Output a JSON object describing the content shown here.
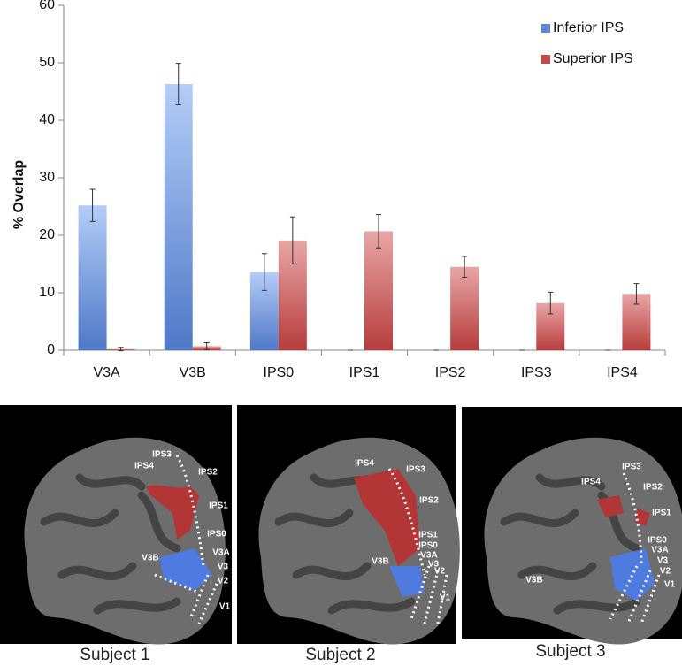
{
  "chart_data": {
    "type": "bar",
    "y_label": "% Overlap",
    "categories": [
      "V3A",
      "V3B",
      "IPS0",
      "IPS1",
      "IPS2",
      "IPS3",
      "IPS4"
    ],
    "series": [
      {
        "name": "Inferior IPS",
        "color": "#5b86d6",
        "values": [
          25.2,
          46.3,
          13.6,
          0,
          0,
          0,
          0
        ],
        "errors": [
          2.8,
          3.6,
          3.2,
          0,
          0,
          0,
          0
        ]
      },
      {
        "name": "Superior IPS",
        "color": "#c24a4a",
        "values": [
          0.2,
          0.7,
          19.1,
          20.7,
          14.5,
          8.2,
          9.8
        ],
        "errors": [
          0.3,
          0.6,
          4.1,
          2.9,
          1.8,
          1.9,
          1.8
        ]
      }
    ],
    "ylim": [
      0,
      60
    ],
    "yticks": [
      0,
      10,
      20,
      30,
      40,
      50,
      60
    ],
    "legend": "top-right"
  },
  "panels": [
    {
      "caption": "Subject 1",
      "labels": [
        "IPS3",
        "IPS4",
        "IPS2",
        "IPS1",
        "IPS0",
        "V3A",
        "V3B",
        "V3",
        "V2",
        "V1"
      ]
    },
    {
      "caption": "Subject 2",
      "labels": [
        "IPS4",
        "IPS3",
        "IPS2",
        "IPS1",
        "IPS0",
        "V3A",
        "V3B",
        "V3",
        "V2",
        "V1"
      ]
    },
    {
      "caption": "Subject 3",
      "labels": [
        "IPS3",
        "IPS4",
        "IPS2",
        "IPS1",
        "IPS0",
        "V3A",
        "V3",
        "V3B",
        "V2",
        "V1"
      ]
    }
  ]
}
